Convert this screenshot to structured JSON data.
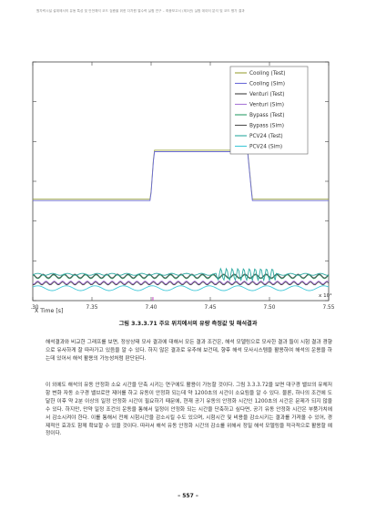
{
  "header": {
    "text": "원자력시설 설계에서의 유동 특성 및 안전해석 코드 검증을 위한 다차원 열수력 실험 연구 – 최종보고서 (제3권) 실험 데이터 분석 및 코드 평가 결과"
  },
  "figure": {
    "caption": "그림 3.3.3.71 주요 위치에서의 유량 측정값 및 해석결과",
    "x_axis_title": "X Time [s]",
    "exponent_label": "x 10⁴"
  },
  "chart_data": {
    "type": "line",
    "title": "",
    "xlabel": "X Time [s]",
    "ylabel": "",
    "x_tick_labels": [
      "7.30",
      "7.35",
      "7.40",
      "7.45",
      "7.50",
      "7.55"
    ],
    "x_multiplier": "x 10⁴",
    "xlim": [
      7.3,
      7.55
    ],
    "ylim": [
      0,
      1
    ],
    "grid": false,
    "legend_position": "top-right",
    "series": [
      {
        "name": "Cooling (Test)",
        "color": "#9aa33a"
      },
      {
        "name": "Cooling (Sim)",
        "color": "#6a6ad8"
      },
      {
        "name": "Venturi (Test)",
        "color": "#404040"
      },
      {
        "name": "Venturi (Sim)",
        "color": "#a878d8"
      },
      {
        "name": "Bypass (Test)",
        "color": "#2f9f6a"
      },
      {
        "name": "Bypass (Sim)",
        "color": "#505050"
      },
      {
        "name": "PCV24 (Test)",
        "color": "#2aa8a0"
      },
      {
        "name": "PCV24 (Sim)",
        "color": "#40c8d8"
      }
    ]
  },
  "paragraphs": [
    "해석결과와 비교한 그래프를 보면, 정상상태 모사 결과에 대해서 모든 결과 조건은, 해석 모델링으로 모사한 결과 들이 시험 결과 경향으로 유사하게 잘 따라가고 있음을 알 수 있다. 하지 않은 결과로 유추해 보건데, 향후 해석 모사시스템을 활용하여 해석의 운용을 하는데 있어서 해석 활용의 가능성처럼 판단된다.",
    "이 외에도 해석의 유동 안정화 소요 시간을 단축 시키는 연구에도 활용이 가능할 것이다. 그림 3.3.3.72을 보면 대구경 밸브의 유체저항 변화 자동 소구경 밸브로만 제어를 하고 유동이 안정화 되는데 약 1200초의 시간이 소요됨을 알 수 있다. 물론, 하나의 조건에 도달한 이후 약 2분 이상의 일정 안정화 시간이 필요하기 때문에, 현재 공기 유동의 안정화 시간인 1200초의 시간은 문제가 되지 않을 수 있다. 하지만, 만약 일정 조건의 운동을 통해서 일정이 안정화 되는 시간을 단축하고 싶다면, 공기 유동 안정화 시간은 부품가치에서 감소시켜야 한다. 이를 통해서 전체 시험시간을 감소시킬 수도 있으며, 시험시간 및 비용을 감소시키는 결과를 가져올 수 있어, 경제적인 효과도 함께 확보할 수 있을 것이다. 따라서 해석 유동 안정화 시간의 감소를 위해서 정밀 해석 모델링을 적극적으로 활용할 예정이다."
  ],
  "page_number": "– 557 –"
}
